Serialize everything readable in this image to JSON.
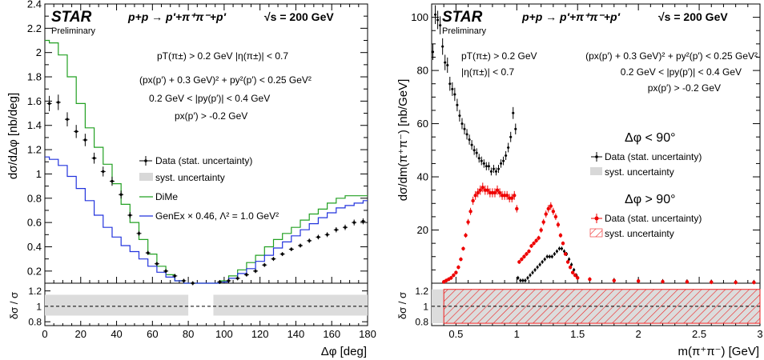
{
  "chart_data": [
    {
      "type": "line",
      "star_label": "STAR",
      "preliminary": "Preliminary",
      "reaction": "p+p → p′+π⁺π⁻+p′",
      "energy": "√s = 200 GeV",
      "cuts": [
        "pT(π±) > 0.2 GeV     |η(π±)| < 0.7",
        "(px(p′) + 0.3 GeV)² + py²(p′) < 0.25 GeV²",
        "0.2 GeV < |py(p′)| < 0.4 GeV",
        "px(p′) > -0.2 GeV"
      ],
      "ylabel": "dσ/dΔφ [nb/deg]",
      "xlabel": "Δφ [deg]",
      "ratio_ylabel": "δσ / σ",
      "xlim": [
        0,
        180
      ],
      "ylim": [
        0.1,
        2.4
      ],
      "ratio_ylim": [
        0.75,
        1.3
      ],
      "x_ticks": [
        "0",
        "20",
        "40",
        "60",
        "80",
        "100",
        "120",
        "140",
        "160",
        "180"
      ],
      "y_ticks": [
        "0.2",
        "0.4",
        "0.6",
        "0.8",
        "1",
        "1.2",
        "1.4",
        "1.6",
        "1.8",
        "2",
        "2.2",
        "2.4"
      ],
      "ratio_y_ticks": [
        "0.8",
        "1",
        "1.2"
      ],
      "legend": [
        {
          "label": "Data (stat. uncertainty)",
          "style": "data"
        },
        {
          "label": "syst. uncertainty",
          "style": "band"
        },
        {
          "label": "DiMe",
          "style": "green"
        },
        {
          "label": "GenEx × 0.46, Λ² = 1.0 GeV²",
          "style": "blue"
        }
      ],
      "series": [
        {
          "name": "Data (stat. uncertainty)",
          "color": "#000000",
          "x": [
            2.5,
            7.5,
            12.5,
            17.5,
            22.5,
            27.5,
            32.5,
            37.5,
            42.5,
            47.5,
            52.5,
            57.5,
            62.5,
            67.5,
            72.5,
            77.5,
            82.5,
            97.5,
            102.5,
            107.5,
            112.5,
            117.5,
            122.5,
            127.5,
            132.5,
            137.5,
            142.5,
            147.5,
            152.5,
            157.5,
            162.5,
            167.5,
            172.5,
            177.5
          ],
          "y": [
            1.58,
            1.59,
            1.45,
            1.35,
            1.28,
            1.13,
            1.02,
            0.94,
            0.83,
            0.66,
            0.51,
            0.35,
            0.26,
            0.2,
            0.16,
            0.12,
            0.1,
            0.11,
            0.12,
            0.14,
            0.17,
            0.2,
            0.25,
            0.3,
            0.34,
            0.38,
            0.41,
            0.45,
            0.48,
            0.5,
            0.54,
            0.56,
            0.6,
            0.61
          ]
        },
        {
          "name": "DiMe",
          "color": "#22a022",
          "x": [
            0,
            5,
            10,
            15,
            20,
            25,
            30,
            35,
            40,
            45,
            50,
            55,
            60,
            65,
            70,
            75,
            80,
            85,
            90,
            95,
            100,
            105,
            110,
            115,
            120,
            125,
            130,
            135,
            140,
            145,
            150,
            155,
            160,
            165,
            170,
            175,
            180
          ],
          "y": [
            2.1,
            2.08,
            1.98,
            1.8,
            1.58,
            1.38,
            1.22,
            1.08,
            0.92,
            0.75,
            0.6,
            0.46,
            0.34,
            0.24,
            0.17,
            0.12,
            0.1,
            0.1,
            0.1,
            0.1,
            0.12,
            0.16,
            0.21,
            0.27,
            0.33,
            0.4,
            0.46,
            0.51,
            0.56,
            0.62,
            0.67,
            0.71,
            0.76,
            0.8,
            0.82,
            0.82,
            0.82
          ]
        },
        {
          "name": "GenEx × 0.46, Λ² = 1.0 GeV²",
          "color": "#2233dd",
          "x": [
            0,
            5,
            10,
            15,
            20,
            25,
            30,
            35,
            40,
            45,
            50,
            55,
            60,
            65,
            70,
            75,
            80,
            85,
            90,
            95,
            100,
            105,
            110,
            115,
            120,
            125,
            130,
            135,
            140,
            145,
            150,
            155,
            160,
            165,
            170,
            175,
            180
          ],
          "y": [
            1.14,
            1.12,
            1.07,
            0.98,
            0.88,
            0.78,
            0.66,
            0.56,
            0.48,
            0.41,
            0.36,
            0.3,
            0.24,
            0.19,
            0.15,
            0.12,
            0.1,
            0.1,
            0.1,
            0.1,
            0.11,
            0.14,
            0.18,
            0.22,
            0.28,
            0.33,
            0.39,
            0.44,
            0.49,
            0.54,
            0.59,
            0.64,
            0.68,
            0.72,
            0.74,
            0.76,
            0.78
          ]
        }
      ],
      "syst_band": {
        "low": 0.88,
        "high": 1.15
      }
    },
    {
      "type": "line",
      "star_label": "STAR",
      "preliminary": "Preliminary",
      "reaction": "p+p → p′+π⁺π⁻+p′",
      "energy": "√s = 200 GeV",
      "cuts": [
        "pT(π±) > 0.2 GeV",
        "|η(π±)| < 0.7",
        "(px(p′) + 0.3 GeV)² + py²(p′) < 0.25 GeV²",
        "0.2 GeV < |py(p′)| < 0.4 GeV",
        "px(p′) > -0.2 GeV"
      ],
      "ylabel": "dσ/dm(π⁺π⁻) [nb/GeV]",
      "xlabel": "m(π⁺π⁻) [GeV]",
      "ratio_ylabel": "δσ / σ",
      "xlim": [
        0.3,
        3.0
      ],
      "ylim": [
        0,
        105
      ],
      "ratio_ylim": [
        0.75,
        1.3
      ],
      "x_ticks": [
        "0.5",
        "1",
        "1.5",
        "2",
        "2.5",
        "3"
      ],
      "y_ticks": [
        "20",
        "40",
        "60",
        "80",
        "100"
      ],
      "ratio_y_ticks": [
        "0.8",
        "1",
        "1.2"
      ],
      "group_low_title": "Δφ < 90°",
      "group_high_title": "Δφ > 90°",
      "legend_low": [
        {
          "label": "Data (stat. uncertainty)",
          "style": "data"
        },
        {
          "label": "syst. uncertainty",
          "style": "band"
        }
      ],
      "legend_high": [
        {
          "label": "Data (stat. uncertainty)",
          "style": "data-red"
        },
        {
          "label": "syst. uncertainty",
          "style": "hatch"
        }
      ],
      "series": [
        {
          "name": "Data (stat. uncertainty), Δφ < 90°",
          "color": "#000000",
          "x": [
            0.31,
            0.33,
            0.35,
            0.37,
            0.39,
            0.41,
            0.43,
            0.45,
            0.47,
            0.49,
            0.51,
            0.53,
            0.55,
            0.57,
            0.59,
            0.61,
            0.63,
            0.65,
            0.67,
            0.69,
            0.71,
            0.73,
            0.75,
            0.77,
            0.79,
            0.81,
            0.83,
            0.85,
            0.87,
            0.89,
            0.91,
            0.93,
            0.95,
            0.97,
            0.99,
            1.01,
            1.03,
            1.05,
            1.07,
            1.09,
            1.11,
            1.13,
            1.15,
            1.17,
            1.19,
            1.21,
            1.23,
            1.25,
            1.27,
            1.29,
            1.31,
            1.33,
            1.35,
            1.37,
            1.39,
            1.41,
            1.43,
            1.45,
            1.47,
            1.49,
            1.6,
            1.8,
            2.0,
            2.2,
            2.4,
            2.6,
            2.8,
            2.95
          ],
          "y": [
            87,
            101,
            99,
            97,
            89,
            83,
            82,
            75,
            73,
            71,
            67,
            63,
            60,
            58,
            56,
            54,
            52,
            50,
            49,
            47,
            46,
            45,
            44,
            44,
            42,
            43,
            42,
            43,
            45,
            46,
            48,
            51,
            55,
            64,
            58,
            2,
            1,
            1,
            1,
            2,
            3,
            4,
            5,
            6,
            7,
            8,
            9,
            10,
            10,
            10,
            11,
            12,
            13,
            13,
            12,
            11,
            9,
            7,
            5,
            3,
            1.5,
            1.2,
            1.0,
            0.8,
            0.7,
            0.6,
            0.5,
            0.5
          ]
        },
        {
          "name": "Data (stat. uncertainty), Δφ > 90°",
          "color": "#ee0000",
          "x": [
            0.4,
            0.42,
            0.44,
            0.46,
            0.48,
            0.5,
            0.52,
            0.54,
            0.56,
            0.58,
            0.6,
            0.62,
            0.64,
            0.66,
            0.68,
            0.7,
            0.72,
            0.74,
            0.76,
            0.78,
            0.8,
            0.82,
            0.84,
            0.86,
            0.88,
            0.9,
            0.92,
            0.94,
            0.96,
            0.98,
            1.0,
            1.02,
            1.04,
            1.06,
            1.08,
            1.1,
            1.12,
            1.14,
            1.16,
            1.18,
            1.2,
            1.22,
            1.24,
            1.26,
            1.28,
            1.3,
            1.32,
            1.34,
            1.36,
            1.38,
            1.4,
            1.42,
            1.44,
            1.46,
            1.48,
            1.5,
            1.6,
            1.8,
            2.0,
            2.2,
            2.4,
            2.6,
            2.8,
            2.95
          ],
          "y": [
            0.5,
            1,
            1.5,
            2,
            3,
            4,
            6,
            9,
            13,
            18,
            23,
            27,
            31,
            33,
            34,
            35,
            36,
            35,
            35,
            34,
            34,
            34,
            35,
            34,
            33,
            33,
            33,
            32,
            32,
            33,
            28,
            8,
            9,
            10,
            11,
            12,
            14,
            15,
            16,
            17,
            20,
            23,
            26,
            28,
            29,
            27,
            25,
            22,
            18,
            15,
            11,
            8,
            6,
            4,
            3,
            2,
            1.5,
            1.0,
            0.8,
            0.6,
            0.5,
            0.4,
            0.3,
            0.3
          ]
        }
      ],
      "syst_band": {
        "low": 0.78,
        "high": 1.22
      }
    }
  ]
}
